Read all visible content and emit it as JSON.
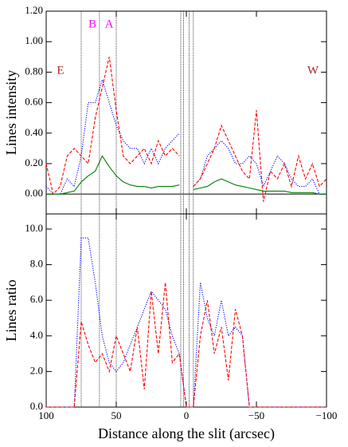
{
  "chart_data": [
    {
      "type": "line",
      "ylabel": "Lines intensity",
      "x": [
        100,
        95,
        90,
        85,
        80,
        75,
        70,
        65,
        60,
        55,
        50,
        45,
        40,
        35,
        30,
        25,
        20,
        15,
        10,
        5,
        0,
        -5,
        -10,
        -15,
        -20,
        -25,
        -30,
        -35,
        -40,
        -45,
        -50,
        -55,
        -60,
        -65,
        -70,
        -75,
        -80,
        -85,
        -90,
        -95,
        -100
      ],
      "xlim": [
        100,
        -100
      ],
      "xticks": [
        100,
        50,
        0,
        -50,
        -100
      ],
      "ylim": [
        -0.13,
        1.2
      ],
      "yticks": [
        {
          "value": 0,
          "label": "0.00"
        },
        {
          "value": 0.2,
          "label": "0.20"
        },
        {
          "value": 0.4,
          "label": "0.40"
        },
        {
          "value": 0.6,
          "label": "0.60"
        },
        {
          "value": 0.8,
          "label": "0.80"
        },
        {
          "value": 1.0,
          "label": "1.00"
        },
        {
          "value": 1.2,
          "label": "1.20"
        }
      ],
      "vlines": [
        75,
        62,
        50,
        4,
        2,
        -2,
        -5
      ],
      "hlines": [
        0
      ],
      "annotations": [
        {
          "text": "E",
          "color": "#b22222"
        },
        {
          "text": "W",
          "color": "#b22222"
        },
        {
          "text": "B",
          "color": "#ff00ff"
        },
        {
          "text": "A",
          "color": "#ff00ff"
        }
      ],
      "series": [
        {
          "color": "#0000ff",
          "dash": "dotted",
          "values": [
            0.05,
            0,
            0,
            0.1,
            0.05,
            0.25,
            0.6,
            0.6,
            0.75,
            0.6,
            0.45,
            0.35,
            0.3,
            0.3,
            0.2,
            0.3,
            0.2,
            0.3,
            0.35,
            0.4,
            null,
            0.05,
            0.1,
            0.25,
            0.3,
            0.35,
            0.3,
            0.2,
            0.2,
            0.25,
            0.2,
            0.05,
            0.15,
            0.25,
            0.2,
            0.1,
            0.05,
            0.05,
            0.1,
            0,
            0
          ]
        },
        {
          "color": "#ff0000",
          "dash": "dashed",
          "values": [
            0.2,
            0,
            0.05,
            0.25,
            0.3,
            0.25,
            0.2,
            0.5,
            0.7,
            0.9,
            0.55,
            0.25,
            0.2,
            0.25,
            0.3,
            0.2,
            0.35,
            0.25,
            0.3,
            0.25,
            null,
            0.05,
            0.1,
            0.2,
            0.3,
            0.45,
            0.35,
            0.25,
            0.15,
            0.1,
            0.55,
            -0.05,
            0.15,
            0.1,
            0.2,
            0.05,
            0.25,
            0.1,
            0.2,
            0.05,
            0.1
          ]
        },
        {
          "color": "#008000",
          "dash": "solid",
          "values": [
            0,
            0,
            0,
            0.01,
            0.02,
            0.08,
            0.12,
            0.15,
            0.25,
            0.18,
            0.12,
            0.08,
            0.06,
            0.05,
            0.05,
            0.04,
            0.05,
            0.05,
            0.05,
            0.06,
            null,
            0.03,
            0.04,
            0.05,
            0.08,
            0.1,
            0.08,
            0.06,
            0.05,
            0.04,
            0.03,
            0.02,
            0.02,
            0.02,
            0.02,
            0.01,
            0.01,
            0.01,
            0.01,
            0,
            0
          ]
        }
      ]
    },
    {
      "type": "line",
      "ylabel": "Lines ratio",
      "xlabel": "Distance along the slit (arcsec)",
      "x": [
        100,
        95,
        90,
        85,
        80,
        75,
        70,
        65,
        60,
        55,
        50,
        45,
        40,
        35,
        30,
        25,
        20,
        15,
        10,
        5,
        0,
        -5,
        -10,
        -15,
        -20,
        -25,
        -30,
        -35,
        -40,
        -45,
        -50,
        -55,
        -60,
        -65,
        -70,
        -75,
        -80,
        -85,
        -90,
        -95,
        -100
      ],
      "xlim": [
        100,
        -100
      ],
      "xticks": [
        100,
        50,
        0,
        {
          "value": -50,
          "label": "−50"
        },
        {
          "value": -100,
          "label": "−100"
        }
      ],
      "ylim": [
        0,
        10.85
      ],
      "yticks": [
        {
          "value": 0,
          "label": "0.0"
        },
        {
          "value": 2,
          "label": "2.0"
        },
        {
          "value": 4,
          "label": "4.0"
        },
        {
          "value": 6,
          "label": "6.0"
        },
        {
          "value": 8,
          "label": "8.0"
        },
        {
          "value": 10,
          "label": "10.0"
        }
      ],
      "vlines": [
        75,
        62,
        50,
        4,
        2,
        -2,
        -5
      ],
      "series": [
        {
          "color": "#0000ff",
          "dash": "dotted",
          "values": [
            0,
            0,
            0,
            0,
            0,
            9.5,
            9.5,
            7,
            4,
            2.5,
            2,
            2.5,
            3.5,
            4.5,
            5.5,
            6.5,
            6,
            5.5,
            4,
            3,
            0,
            0,
            7,
            5,
            4,
            6,
            4,
            4.5,
            4,
            0,
            0,
            0,
            0,
            0,
            0,
            0,
            0,
            0,
            0,
            0,
            0
          ]
        },
        {
          "color": "#ff0000",
          "dash": "dashed",
          "values": [
            0,
            0,
            0,
            0,
            0,
            4.8,
            3.5,
            2.5,
            3,
            2,
            4,
            3,
            2,
            4.5,
            1,
            6.5,
            3,
            7,
            2.5,
            3,
            0,
            0,
            4,
            6,
            3,
            4.5,
            1.5,
            5.5,
            4,
            0,
            0,
            0,
            0,
            0,
            0,
            0,
            0,
            0,
            0,
            0,
            0
          ]
        }
      ]
    }
  ]
}
